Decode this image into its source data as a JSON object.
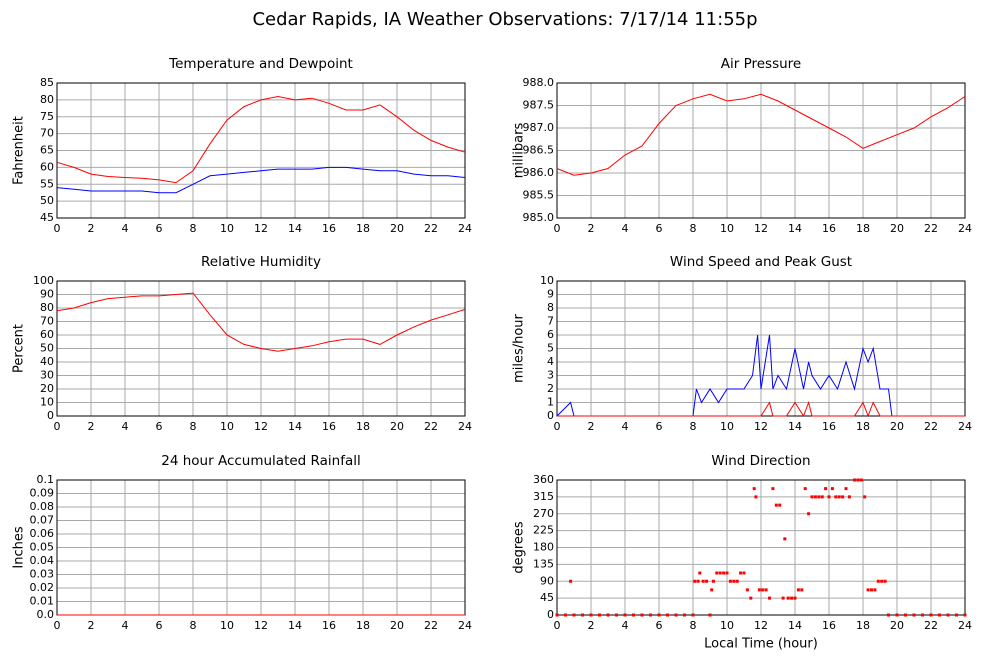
{
  "title": "Cedar Rapids, IA Weather Observations: 7/17/14 11:55p",
  "chart_data": [
    {
      "type": "line",
      "title": "Temperature and Dewpoint",
      "ylabel": "Fahrenheit",
      "x": [
        0,
        1,
        2,
        3,
        4,
        5,
        6,
        7,
        8,
        9,
        10,
        11,
        12,
        13,
        14,
        15,
        16,
        17,
        18,
        19,
        20,
        21,
        22,
        23,
        24
      ],
      "series": [
        {
          "color": "#ff0000",
          "values": [
            61.5,
            60,
            58,
            57.3,
            57,
            56.8,
            56.3,
            55.5,
            59,
            67,
            74,
            78,
            80,
            81,
            80,
            80.5,
            79,
            77,
            77,
            78.5,
            75,
            71,
            68,
            66,
            64.5
          ]
        },
        {
          "color": "#0000ff",
          "values": [
            54,
            53.5,
            53,
            53,
            53,
            53,
            52.5,
            52.5,
            55,
            57.5,
            58,
            58.5,
            59,
            59.5,
            59.5,
            59.5,
            60,
            60,
            59.5,
            59,
            59,
            58,
            57.5,
            57.5,
            57
          ]
        }
      ],
      "xlim": [
        0,
        24
      ],
      "xticks": [
        0,
        2,
        4,
        6,
        8,
        10,
        12,
        14,
        16,
        18,
        20,
        22,
        24
      ],
      "ylim": [
        45,
        85
      ],
      "yticks": [
        45,
        50,
        55,
        60,
        65,
        70,
        75,
        80,
        85
      ],
      "grid": true
    },
    {
      "type": "line",
      "title": "Air Pressure",
      "ylabel": "millibars",
      "x": [
        0,
        1,
        2,
        3,
        4,
        5,
        6,
        7,
        8,
        9,
        10,
        11,
        12,
        13,
        14,
        15,
        16,
        17,
        18,
        19,
        20,
        21,
        22,
        23,
        24
      ],
      "series": [
        {
          "color": "#ff0000",
          "values": [
            986.1,
            985.95,
            986.0,
            986.1,
            986.4,
            986.6,
            987.1,
            987.5,
            987.65,
            987.75,
            987.6,
            987.65,
            987.75,
            987.6,
            987.4,
            987.2,
            987.0,
            986.8,
            986.55,
            986.7,
            986.85,
            987.0,
            987.25,
            987.45,
            987.7
          ]
        }
      ],
      "xlim": [
        0,
        24
      ],
      "xticks": [
        0,
        2,
        4,
        6,
        8,
        10,
        12,
        14,
        16,
        18,
        20,
        22,
        24
      ],
      "ylim": [
        985,
        988
      ],
      "yticks": [
        {
          "value": 985,
          "label": "985.0"
        },
        985.5,
        {
          "value": 986,
          "label": "986.0"
        },
        986.5,
        {
          "value": 987,
          "label": "987.0"
        },
        987.5,
        {
          "value": 988,
          "label": "988.0"
        }
      ],
      "grid": true
    },
    {
      "type": "line",
      "title": "Relative Humidity",
      "ylabel": "Percent",
      "x": [
        0,
        1,
        2,
        3,
        4,
        5,
        6,
        7,
        8,
        9,
        10,
        11,
        12,
        13,
        14,
        15,
        16,
        17,
        18,
        19,
        20,
        21,
        22,
        23,
        24
      ],
      "series": [
        {
          "color": "#ff0000",
          "values": [
            78,
            80,
            84,
            87,
            88,
            89,
            89,
            90,
            91,
            75,
            60,
            53,
            50,
            48,
            50,
            52,
            55,
            57,
            57,
            53,
            60,
            66,
            71,
            75,
            79
          ]
        }
      ],
      "xlim": [
        0,
        24
      ],
      "xticks": [
        0,
        2,
        4,
        6,
        8,
        10,
        12,
        14,
        16,
        18,
        20,
        22,
        24
      ],
      "ylim": [
        0,
        100
      ],
      "yticks": [
        0,
        10,
        20,
        30,
        40,
        50,
        60,
        70,
        80,
        90,
        100
      ],
      "grid": true
    },
    {
      "type": "line",
      "title": "Wind Speed and Peak Gust",
      "ylabel": "miles/hour",
      "x": [
        0,
        0.8,
        1,
        8,
        8.2,
        8.5,
        9,
        9.5,
        10,
        10.5,
        11,
        11.5,
        11.8,
        12,
        12.5,
        12.7,
        13,
        13.5,
        14,
        14.5,
        14.8,
        15,
        15.5,
        16,
        16.5,
        17,
        17.5,
        18,
        18.3,
        18.6,
        19,
        19.5,
        19.7,
        24
      ],
      "series": [
        {
          "color": "#0000ff",
          "values": [
            0,
            1,
            0,
            0,
            2,
            1,
            2,
            1,
            2,
            2,
            2,
            3,
            6,
            2,
            6,
            2,
            3,
            2,
            5,
            2,
            4,
            3,
            2,
            3,
            2,
            4,
            2,
            5,
            4,
            5,
            2,
            2,
            0,
            0
          ]
        },
        {
          "color": "#ff0000",
          "values": [
            0,
            0,
            0,
            0,
            0,
            0,
            0,
            0,
            0,
            0,
            0,
            0,
            0,
            0,
            1,
            0,
            0,
            0,
            1,
            0,
            1,
            0,
            0,
            0,
            0,
            0,
            0,
            1,
            0,
            1,
            0,
            0,
            0,
            0
          ]
        }
      ],
      "xlim": [
        0,
        24
      ],
      "xticks": [
        0,
        2,
        4,
        6,
        8,
        10,
        12,
        14,
        16,
        18,
        20,
        22,
        24
      ],
      "ylim": [
        0,
        10
      ],
      "yticks": [
        0,
        1,
        2,
        3,
        4,
        5,
        6,
        7,
        8,
        9,
        10
      ],
      "grid": true
    },
    {
      "type": "line",
      "title": "24 hour Accumulated Rainfall",
      "ylabel": "Inches",
      "x": [
        0,
        24
      ],
      "series": [
        {
          "color": "#ff0000",
          "values": [
            0,
            0
          ]
        }
      ],
      "xlim": [
        0,
        24
      ],
      "xticks": [
        0,
        2,
        4,
        6,
        8,
        10,
        12,
        14,
        16,
        18,
        20,
        22,
        24
      ],
      "ylim": [
        0,
        0.1
      ],
      "yticks": [
        {
          "value": 0,
          "label": "0.0"
        },
        0.01,
        0.02,
        0.03,
        0.04,
        0.05,
        0.06,
        0.07,
        0.08,
        0.09,
        0.1
      ],
      "grid": true
    },
    {
      "type": "scatter",
      "title": "Wind Direction",
      "ylabel": "degrees",
      "xlabel": "Local Time (hour)",
      "x": [
        0,
        0.5,
        0.8,
        1,
        1.5,
        2,
        2.5,
        3,
        3.5,
        4,
        4.5,
        5,
        5.5,
        6,
        6.5,
        7,
        7.5,
        8,
        8.1,
        8.3,
        8.4,
        8.6,
        8.8,
        9,
        9.1,
        9.2,
        9.4,
        9.6,
        9.8,
        10,
        10.2,
        10.4,
        10.6,
        10.8,
        11,
        11.2,
        11.4,
        11.6,
        11.7,
        11.9,
        12.1,
        12.3,
        12.5,
        12.7,
        12.9,
        13.1,
        13.3,
        13.4,
        13.6,
        13.8,
        14,
        14.2,
        14.4,
        14.6,
        14.8,
        15,
        15.2,
        15.4,
        15.6,
        15.8,
        16,
        16.2,
        16.4,
        16.6,
        16.8,
        17,
        17.2,
        17.5,
        17.7,
        17.9,
        18.1,
        18.3,
        18.5,
        18.7,
        18.9,
        19.1,
        19.3,
        19.5,
        20,
        20.5,
        21,
        21.5,
        22,
        22.5,
        23,
        23.5,
        24
      ],
      "values": [
        0,
        0,
        90,
        0,
        0,
        0,
        0,
        0,
        0,
        0,
        0,
        0,
        0,
        0,
        0,
        0,
        0,
        0,
        90,
        90,
        112,
        90,
        90,
        0,
        67,
        90,
        112,
        112,
        112,
        112,
        90,
        90,
        90,
        112,
        112,
        67,
        45,
        337,
        315,
        67,
        67,
        67,
        45,
        337,
        293,
        293,
        45,
        203,
        45,
        45,
        45,
        67,
        67,
        337,
        270,
        315,
        315,
        315,
        315,
        337,
        315,
        337,
        315,
        315,
        315,
        337,
        315,
        360,
        360,
        360,
        315,
        67,
        67,
        67,
        90,
        90,
        90,
        0,
        0,
        0,
        0,
        0,
        0,
        0,
        0,
        0,
        0
      ],
      "color": "#ff0000",
      "xlim": [
        0,
        24
      ],
      "xticks": [
        0,
        2,
        4,
        6,
        8,
        10,
        12,
        14,
        16,
        18,
        20,
        22,
        24
      ],
      "ylim": [
        0,
        360
      ],
      "yticks": [
        0,
        45,
        90,
        135,
        180,
        225,
        270,
        315,
        360
      ],
      "grid": true
    }
  ]
}
